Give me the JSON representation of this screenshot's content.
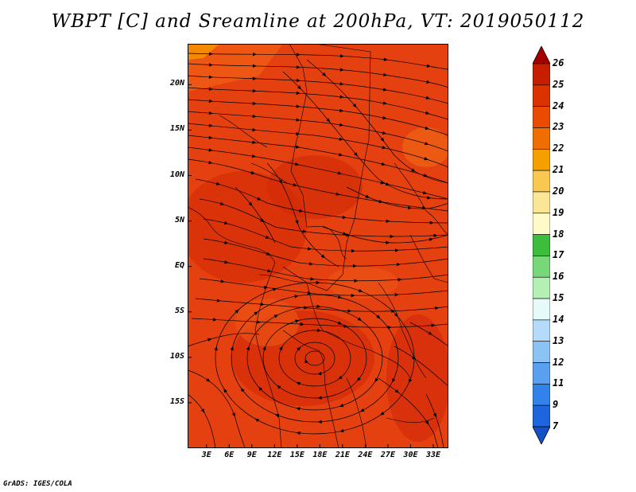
{
  "title": "WBPT [C] and Sreamline at 200hPa, VT: 2019050112",
  "footer": "GrADS: IGES/COLA",
  "map": {
    "lat_labels": [
      "20N",
      "15N",
      "10N",
      "5N",
      "EQ",
      "5S",
      "10S",
      "15S"
    ],
    "lat_values": [
      20,
      15,
      10,
      5,
      0,
      -5,
      -10,
      -15
    ],
    "lon_labels": [
      "3E",
      "6E",
      "9E",
      "12E",
      "15E",
      "18E",
      "21E",
      "24E",
      "27E",
      "30E",
      "33E"
    ],
    "lon_values": [
      3,
      6,
      9,
      12,
      15,
      18,
      21,
      24,
      27,
      30,
      33
    ],
    "lat_range": [
      -20,
      24.5
    ],
    "lon_range": [
      0.5,
      35
    ]
  },
  "colorbar": {
    "levels": [
      "26",
      "25",
      "24",
      "23",
      "22",
      "21",
      "20",
      "19",
      "18",
      "17",
      "16",
      "15",
      "14",
      "13",
      "12",
      "11",
      "9",
      "7"
    ],
    "colors": [
      "#a50000",
      "#c81e00",
      "#dc3200",
      "#eb4b00",
      "#f06e00",
      "#f5a000",
      "#fac850",
      "#fae696",
      "#fffac8",
      "#3cbe3c",
      "#78d778",
      "#b4f0b4",
      "#e6fafa",
      "#b4dcfa",
      "#8cc3f5",
      "#5aa0f0",
      "#3282eb",
      "#1e64dc",
      "#1450c8"
    ]
  }
}
